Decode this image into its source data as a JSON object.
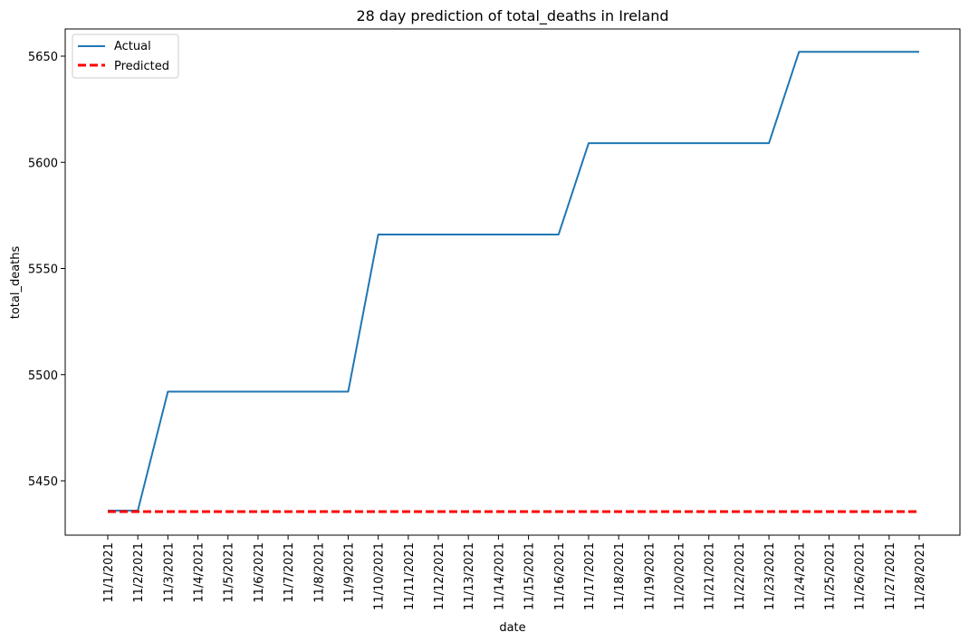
{
  "chart_data": {
    "type": "line",
    "title": "28 day prediction of total_deaths in Ireland",
    "xlabel": "date",
    "ylabel": "total_deaths",
    "categories": [
      "11/1/2021",
      "11/2/2021",
      "11/3/2021",
      "11/4/2021",
      "11/5/2021",
      "11/6/2021",
      "11/7/2021",
      "11/8/2021",
      "11/9/2021",
      "11/10/2021",
      "11/11/2021",
      "11/12/2021",
      "11/13/2021",
      "11/14/2021",
      "11/15/2021",
      "11/16/2021",
      "11/17/2021",
      "11/18/2021",
      "11/19/2021",
      "11/20/2021",
      "11/21/2021",
      "11/22/2021",
      "11/23/2021",
      "11/24/2021",
      "11/25/2021",
      "11/26/2021",
      "11/27/2021",
      "11/28/2021"
    ],
    "yticks": [
      5450,
      5500,
      5550,
      5600,
      5650
    ],
    "ylim": [
      5424,
      5655
    ],
    "grid": false,
    "legend_position": "top-left",
    "series": [
      {
        "name": "Actual",
        "color": "#1f77b4",
        "style": "solid",
        "values": [
          5436,
          5436,
          5492,
          5492,
          5492,
          5492,
          5492,
          5492,
          5492,
          5566,
          5566,
          5566,
          5566,
          5566,
          5566,
          5566,
          5609,
          5609,
          5609,
          5609,
          5609,
          5609,
          5609,
          5652,
          5652,
          5652,
          5652,
          5652
        ]
      },
      {
        "name": "Predicted",
        "color": "#ff0000",
        "style": "dashed",
        "values": [
          5435.5,
          5435.5,
          5435.5,
          5435.5,
          5435.5,
          5435.5,
          5435.5,
          5435.5,
          5435.5,
          5435.5,
          5435.5,
          5435.5,
          5435.5,
          5435.5,
          5435.5,
          5435.5,
          5435.5,
          5435.5,
          5435.5,
          5435.5,
          5435.5,
          5435.5,
          5435.5,
          5435.5,
          5435.5,
          5435.5,
          5435.5,
          5435.5
        ]
      }
    ]
  }
}
